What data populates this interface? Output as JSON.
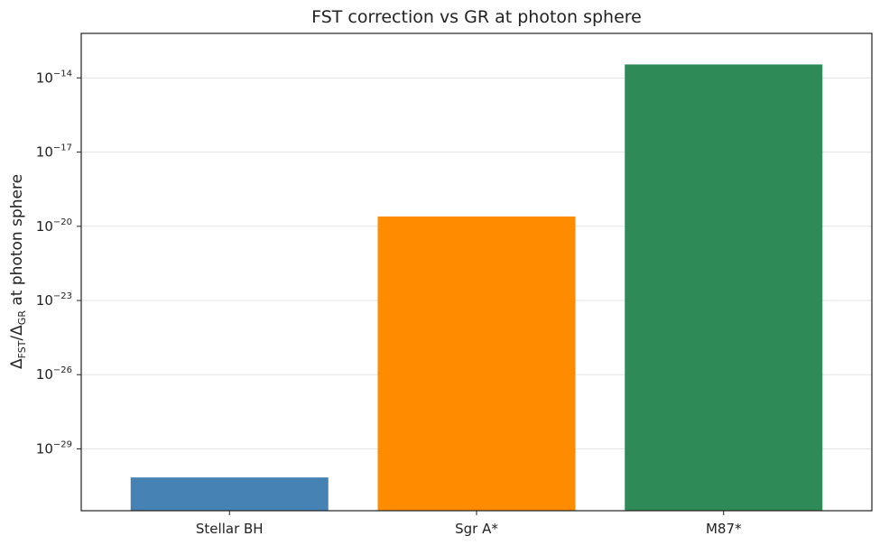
{
  "chart_data": {
    "type": "bar",
    "title": "FST correction vs GR at photon sphere",
    "ylabel": {
      "delta1": "Δ",
      "sub1": "FST",
      "slash": "/",
      "delta2": "Δ",
      "sub2": "GR",
      "rest": " at photon sphere"
    },
    "xlabel": "",
    "yscale": "log",
    "ylim_exp": [
      -31.5,
      -12.2
    ],
    "ytick_base": "10",
    "ytick_exponents": [
      "−14",
      "−17",
      "−20",
      "−23",
      "−26",
      "−29"
    ],
    "ytick_values_exp": [
      -14,
      -17,
      -20,
      -23,
      -26,
      -29
    ],
    "grid": "y",
    "categories": [
      "Stellar BH",
      "Sgr A*",
      "M87*"
    ],
    "values": [
      7e-31,
      2.5e-20,
      3.5e-14
    ],
    "colors": [
      "#4682b4",
      "#ff8c00",
      "#2e8b57"
    ]
  }
}
